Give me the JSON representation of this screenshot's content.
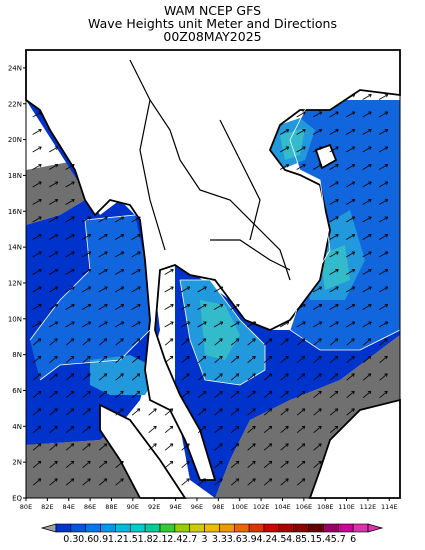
{
  "titles": {
    "line1": "WAM NCEP GFS",
    "line2": "Wave Heights unit Meter and Directions",
    "line3": "00Z08MAY2025"
  },
  "axes": {
    "lat_labels": [
      "EQ",
      "2N",
      "4N",
      "6N",
      "8N",
      "10N",
      "12N",
      "14N",
      "16N",
      "18N",
      "20N",
      "22N",
      "24N"
    ],
    "lon_labels": [
      "80E",
      "82E",
      "84E",
      "86E",
      "88E",
      "90E",
      "92E",
      "94E",
      "96E",
      "98E",
      "100E",
      "102E",
      "104E",
      "106E",
      "108E",
      "110E",
      "112E",
      "114E"
    ],
    "lat_range": [
      0,
      25
    ],
    "lon_range": [
      80,
      115
    ]
  },
  "colorbar": {
    "labels": [
      "0.3",
      "0.6",
      "0.9",
      "1.2",
      "1.5",
      "1.8",
      "2.1",
      "2.4",
      "2.7",
      "3",
      "3.3",
      "3.6",
      "3.9",
      "4.2",
      "4.5",
      "4.8",
      "5.1",
      "5.4",
      "5.7",
      "6"
    ],
    "colors": [
      "#0033cc",
      "#0055dd",
      "#0077ee",
      "#0099ee",
      "#00bbdd",
      "#00cccc",
      "#00cc99",
      "#33cc33",
      "#99cc00",
      "#cccc00",
      "#eebb00",
      "#ee9900",
      "#ee6600",
      "#dd3300",
      "#cc0000",
      "#aa0000",
      "#880000",
      "#660000",
      "#990066",
      "#cc0099",
      "#dd33aa"
    ]
  },
  "colors": {
    "land": "#ffffff",
    "no_data": "#707070",
    "band_low": "#0033cc",
    "band_mid": "#1166dd",
    "band_high": "#2299dd",
    "band_peak": "#33bbcc"
  }
}
